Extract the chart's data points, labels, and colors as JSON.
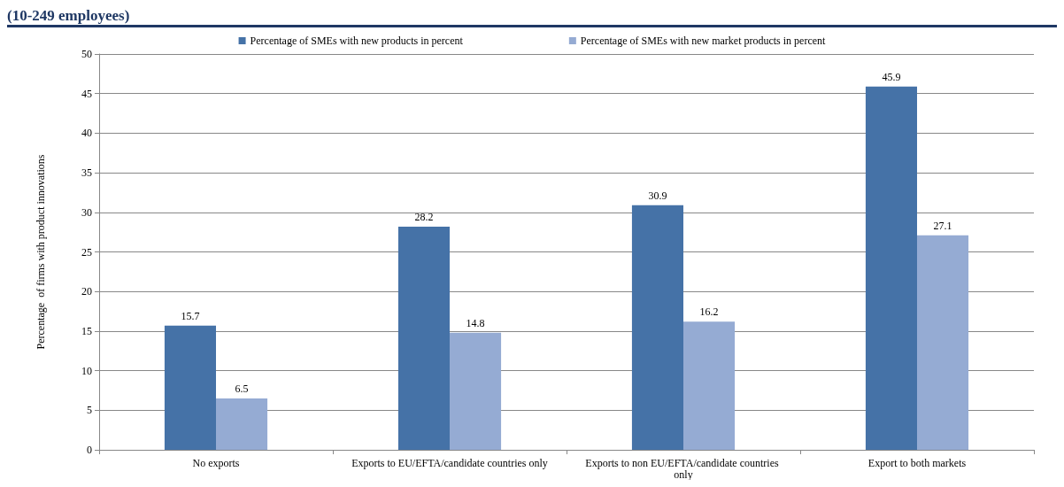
{
  "chart_data": {
    "type": "bar",
    "title": "(10-249 employees)",
    "ylabel": "Percentage  of firms with product innovations",
    "categories": [
      "No exports",
      "Exports to EU/EFTA/candidate countries only",
      "Exports to non EU/EFTA/candidate countries only",
      "Export to both markets"
    ],
    "series": [
      {
        "name": "Percentage of SMEs with new products in percent",
        "color": "#4572a7",
        "values": [
          15.7,
          28.2,
          30.9,
          45.9
        ]
      },
      {
        "name": "Percentage of SMEs with new market products in percent",
        "color": "#95abd3",
        "values": [
          6.5,
          14.8,
          16.2,
          27.1
        ]
      }
    ],
    "ylim": [
      0,
      50
    ],
    "yticks": [
      0,
      5,
      10,
      15,
      20,
      25,
      30,
      35,
      40,
      45,
      50
    ],
    "grid": "y",
    "legend": "top",
    "data_labels": true
  }
}
